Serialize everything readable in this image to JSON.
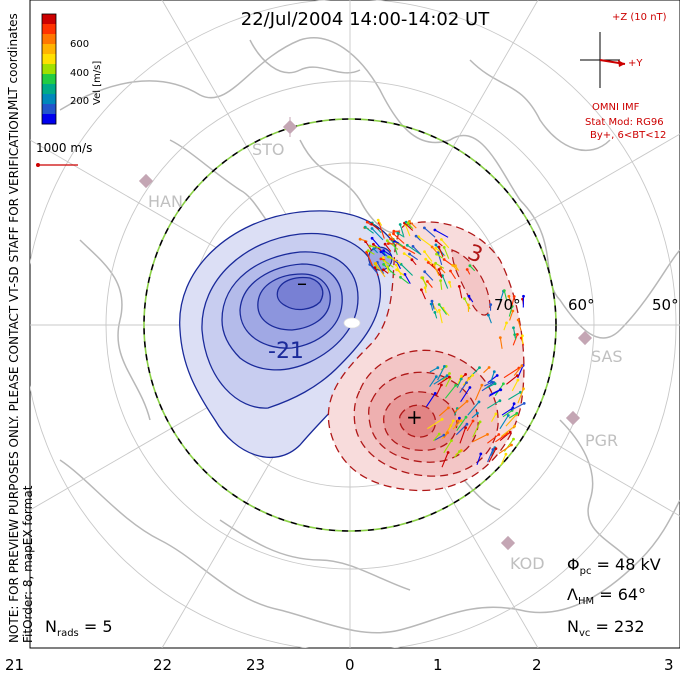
{
  "title": "22/Jul/2004 14:00-14:02 UT",
  "coords_label": "MLT coordinates",
  "side_note_1": "NOTE: FOR PREVIEW PURPOSES ONLY. PLEASE CONTACT VT-SD STAFF FOR VERIFICATION.",
  "side_note_2": "FitOrder: 8, mapEX format",
  "colorbar": {
    "label": "Vel [m/s]",
    "ticks": [
      "600",
      "400",
      "200"
    ],
    "colors": [
      "#cc0000",
      "#ff3300",
      "#ff7700",
      "#ffb300",
      "#ffe000",
      "#a0e000",
      "#22cc44",
      "#00aa88",
      "#0088bb",
      "#2255cc",
      "#0000ee"
    ]
  },
  "ref_vector_label": "1000 m/s",
  "imf": {
    "z_label": "+Z (10 nT)",
    "y_label": "+Y",
    "source": "OMNI IMF",
    "stat_mod": "Stat Mod: RG96",
    "condition": "By+, 6<BT<12"
  },
  "stations": [
    "STO",
    "HAN",
    "SAS",
    "PGR",
    "KOD"
  ],
  "lat_labels": [
    "70°",
    "60°",
    "50°"
  ],
  "contour_labels": {
    "neg": "-21",
    "pos": "3",
    "min_marker": "–",
    "max_marker": "+"
  },
  "mlt_ticks": [
    "21",
    "22",
    "23",
    "0",
    "1",
    "2",
    "3"
  ],
  "stats": {
    "phi_sym": "Φ",
    "phi_sub": "pc",
    "phi_val": " = 48 kV",
    "lambda_sym": "Λ",
    "lambda_sub": "HM",
    "lambda_val": " = 64°",
    "nvc_sym": "N",
    "nvc_sub": "vc",
    "nvc_val": " = 232",
    "nrads_sym": "N",
    "nrads_sub": "rads",
    "nrads_val": " = 5"
  }
}
